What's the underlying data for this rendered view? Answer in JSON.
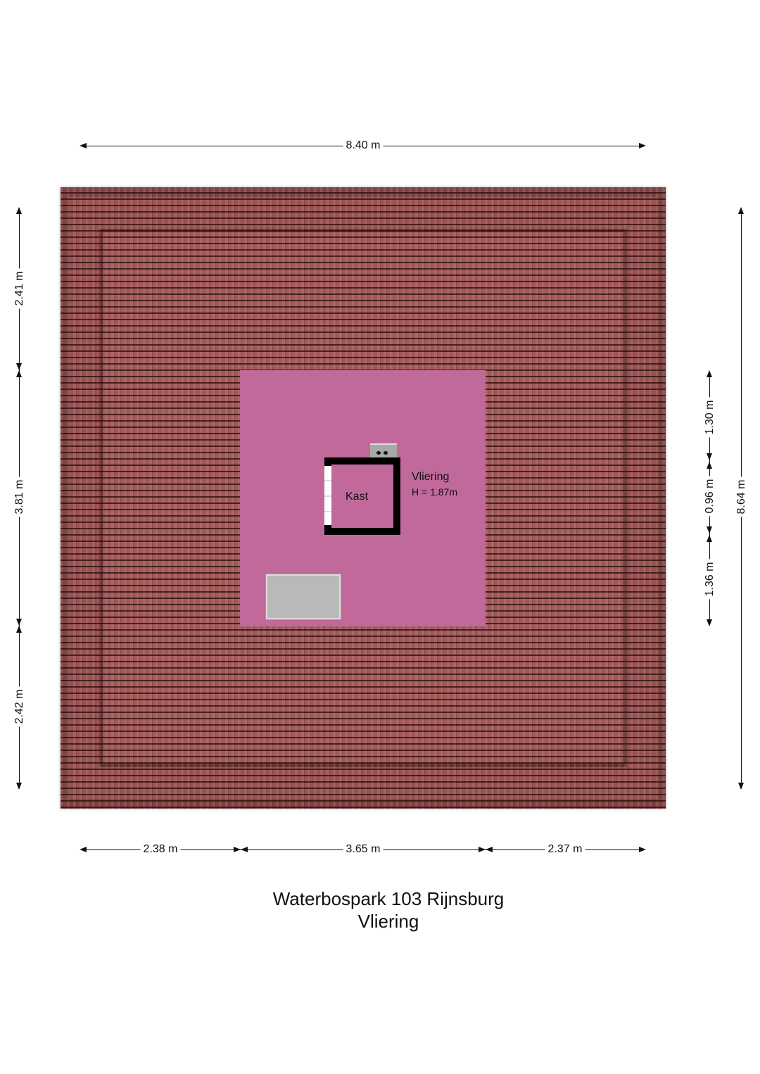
{
  "title": {
    "address": "Waterbospark 103 Rijnsburg",
    "floor": "Vliering"
  },
  "rooms": [
    {
      "name": "Vliering",
      "height_label": "H = 1.87m"
    },
    {
      "name": "Kast"
    }
  ],
  "dimensions": {
    "top_total": "8.40 m",
    "bottom": [
      "2.38 m",
      "3.65 m",
      "2.37 m"
    ],
    "left": [
      "2.41 m",
      "3.81 m",
      "2.42 m"
    ],
    "right_inner": [
      "1.30 m",
      "0.96 m",
      "1.36 m"
    ],
    "right_total": "8.64 m"
  },
  "colors": {
    "roof": "#7e4343",
    "room": "#c2699b",
    "walls": "#000000",
    "hatch": "#b9b9b9"
  }
}
